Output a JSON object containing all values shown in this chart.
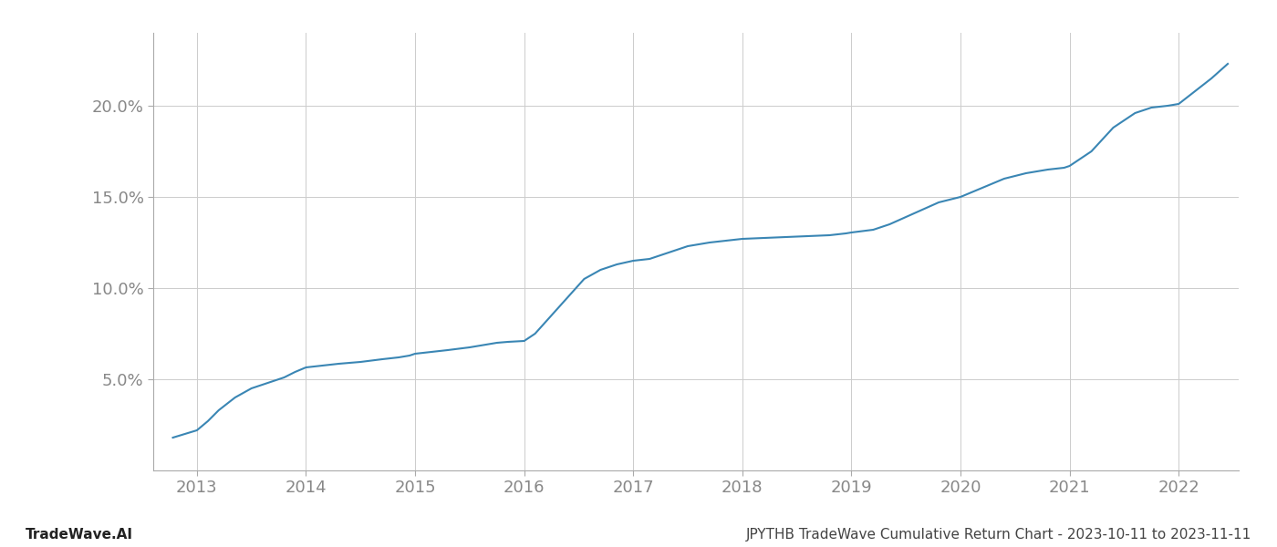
{
  "title": "JPYTHB TradeWave Cumulative Return Chart - 2023-10-11 to 2023-11-11",
  "watermark": "TradeWave.AI",
  "line_color": "#3a86b4",
  "line_width": 1.5,
  "background_color": "#ffffff",
  "grid_color": "#cccccc",
  "x_years": [
    2013,
    2014,
    2015,
    2016,
    2017,
    2018,
    2019,
    2020,
    2021,
    2022
  ],
  "x_data": [
    2012.78,
    2013.0,
    2013.1,
    2013.2,
    2013.35,
    2013.5,
    2013.65,
    2013.8,
    2013.9,
    2014.0,
    2014.15,
    2014.3,
    2014.5,
    2014.7,
    2014.85,
    2014.95,
    2015.0,
    2015.15,
    2015.3,
    2015.5,
    2015.65,
    2015.75,
    2015.85,
    2016.0,
    2016.1,
    2016.25,
    2016.4,
    2016.55,
    2016.7,
    2016.85,
    2017.0,
    2017.15,
    2017.3,
    2017.5,
    2017.7,
    2017.85,
    2018.0,
    2018.2,
    2018.4,
    2018.6,
    2018.8,
    2018.95,
    2019.0,
    2019.2,
    2019.35,
    2019.5,
    2019.65,
    2019.8,
    2020.0,
    2020.2,
    2020.4,
    2020.6,
    2020.8,
    2020.95,
    2021.0,
    2021.2,
    2021.4,
    2021.6,
    2021.75,
    2021.9,
    2022.0,
    2022.15,
    2022.3,
    2022.45
  ],
  "y_data": [
    1.8,
    2.2,
    2.7,
    3.3,
    4.0,
    4.5,
    4.8,
    5.1,
    5.4,
    5.65,
    5.75,
    5.85,
    5.95,
    6.1,
    6.2,
    6.3,
    6.4,
    6.5,
    6.6,
    6.75,
    6.9,
    7.0,
    7.05,
    7.1,
    7.5,
    8.5,
    9.5,
    10.5,
    11.0,
    11.3,
    11.5,
    11.6,
    11.9,
    12.3,
    12.5,
    12.6,
    12.7,
    12.75,
    12.8,
    12.85,
    12.9,
    13.0,
    13.05,
    13.2,
    13.5,
    13.9,
    14.3,
    14.7,
    15.0,
    15.5,
    16.0,
    16.3,
    16.5,
    16.6,
    16.7,
    17.5,
    18.8,
    19.6,
    19.9,
    20.0,
    20.1,
    20.8,
    21.5,
    22.3
  ],
  "ylim": [
    0,
    24
  ],
  "yticks": [
    5.0,
    10.0,
    15.0,
    20.0
  ],
  "xlim": [
    2012.6,
    2022.55
  ],
  "tick_label_color": "#888888",
  "tick_fontsize": 13,
  "footer_fontsize": 11
}
